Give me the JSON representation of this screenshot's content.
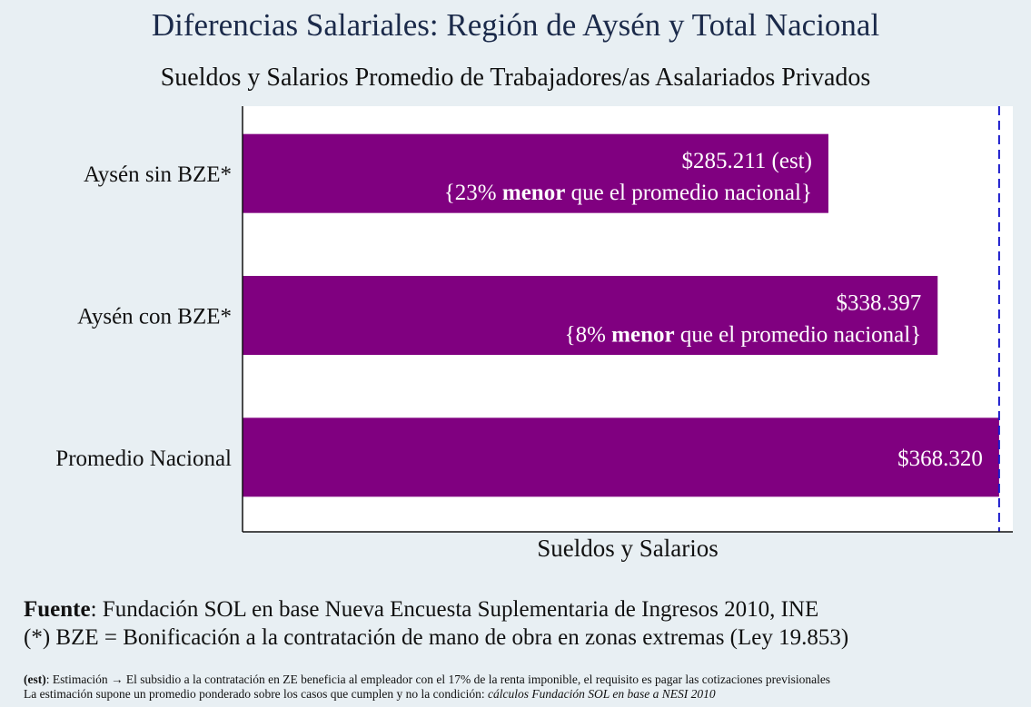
{
  "chart_data": {
    "type": "bar",
    "orientation": "horizontal",
    "title": "Diferencias Salariales: Región de Aysén y Total Nacional",
    "subtitle": "Sueldos y Salarios Promedio de Trabajadores/as Asalariados Privados",
    "xlabel": "Sueldos y Salarios",
    "categories": [
      "Aysén sin BZE*",
      "Aysén con BZE*",
      "Promedio Nacional"
    ],
    "values": [
      285211,
      338397,
      368320
    ],
    "value_labels": [
      "$285.211 (est)",
      "$338.397",
      "$368.320"
    ],
    "annotations": [
      {
        "pre": "{23% ",
        "bold": "menor",
        "post": " que el promedio nacional}"
      },
      {
        "pre": "{8% ",
        "bold": "menor",
        "post": " que el promedio nacional}"
      },
      null
    ],
    "xlim": [
      0,
      375000
    ],
    "reference_line": {
      "value": 368320,
      "style": "dashed",
      "color": "#1a1acc"
    },
    "bar_color": "#800080",
    "plot_background": "#ffffff",
    "grid": false
  },
  "footer": {
    "source_label": "Fuente",
    "source_text": ": Fundación SOL en base Nueva Encuesta Suplementaria de Ingresos 2010, INE",
    "bze_note": "(*) BZE = Bonificación a la contratación de mano de obra en zonas extremas (Ley 19.853)",
    "est_label": "(est)",
    "est_text": ": Estimación → El subsidio a la contratación en ZE beneficia al empleador con el 17% de la renta imponible, el requisito es pagar las cotizaciones previsionales",
    "method_text": "La estimación supone un promedio ponderado sobre los casos que cumplen y no la condición: ",
    "method_italic": "cálculos Fundación SOL en base a NESI 2010"
  }
}
